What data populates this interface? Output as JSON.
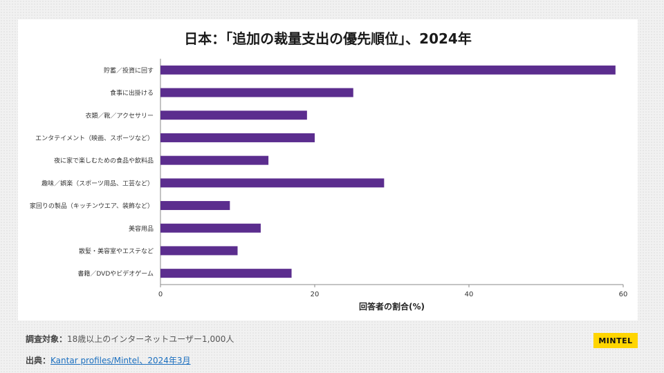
{
  "chart_data": {
    "type": "bar",
    "orientation": "horizontal",
    "title": "日本：「追加の裁量支出の優先順位」、2024年",
    "xlabel": "回答者の割合(%)",
    "ylabel": "",
    "xlim": [
      0,
      60
    ],
    "xticks": [
      0,
      20,
      40,
      60
    ],
    "color": "#5b2d8e",
    "categories": [
      "貯蓄／投資に回す",
      "食事に出掛ける",
      "衣類／靴／アクセサリー",
      "エンタテイメント（映画、スポーツなど）",
      "夜に家で楽しむための食品や飲料品",
      "趣味／娯楽（スポーツ用品、工芸など）",
      "家回りの製品（キッチンウエア、装飾など）",
      "美容用品",
      "散髪・美容室やエステなど",
      "書籍／DVDやビデオゲーム"
    ],
    "values": [
      59,
      25,
      19,
      20,
      14,
      29,
      9,
      13,
      10,
      17
    ]
  },
  "footer": {
    "survey_label": "調査対象：",
    "survey_text": "18歳以上のインターネットユーザー1,000人",
    "source_label": "出典：",
    "source_text": "Kantar profiles/Mintel、2024年3月"
  },
  "logo": {
    "text": "MINTEL"
  }
}
